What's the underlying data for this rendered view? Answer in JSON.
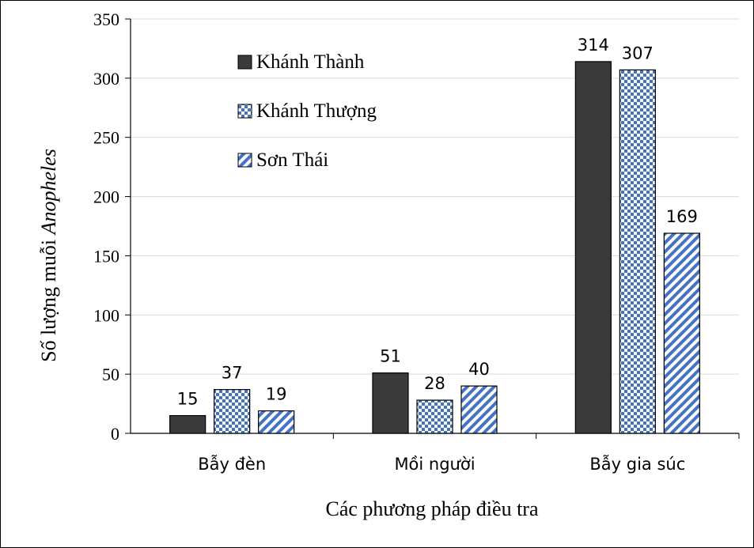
{
  "chart_data": {
    "type": "bar",
    "categories": [
      "Bẫy đèn",
      "Mồi người",
      "Bẫy gia súc"
    ],
    "series": [
      {
        "name": "Khánh Thành",
        "values": [
          15,
          51,
          314
        ],
        "color": "#3a3a3a",
        "pattern": "solid"
      },
      {
        "name": "Khánh Thượng",
        "values": [
          37,
          28,
          307
        ],
        "color": "#4472c4",
        "pattern": "checker"
      },
      {
        "name": "Sơn Thái",
        "values": [
          19,
          40,
          169
        ],
        "color": "#4472c4",
        "pattern": "diagonal"
      }
    ],
    "title": "",
    "xlabel": "Các phương pháp điều tra",
    "ylabel_prefix": "Số lượng muỗi ",
    "ylabel_italic": "Anopheles",
    "ylim": [
      0,
      350
    ],
    "yticks": [
      0,
      50,
      100,
      150,
      200,
      250,
      300,
      350
    ],
    "grid": true,
    "legend_position": "top-left"
  }
}
